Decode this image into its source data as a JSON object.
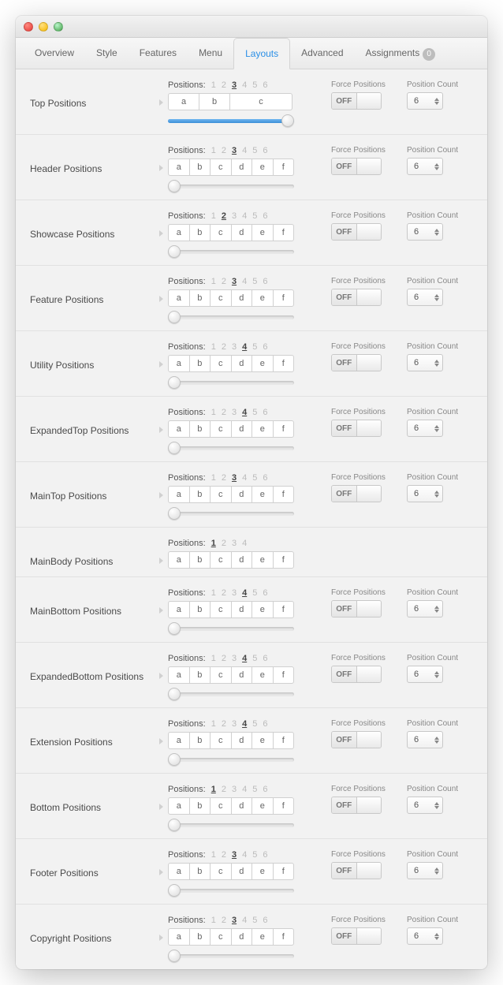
{
  "tabs": [
    {
      "label": "Overview",
      "active": false
    },
    {
      "label": "Style",
      "active": false
    },
    {
      "label": "Features",
      "active": false
    },
    {
      "label": "Menu",
      "active": false
    },
    {
      "label": "Layouts",
      "active": true
    },
    {
      "label": "Advanced",
      "active": false
    },
    {
      "label": "Assignments",
      "active": false,
      "badge": "0"
    }
  ],
  "labels": {
    "positions": "Positions:",
    "force": "Force Positions",
    "count": "Position Count"
  },
  "colors": {
    "accent": "#2b8fe6",
    "slider_fill": "#3c8fd8",
    "panel_bg": "#f2f2f2",
    "border": "#d4d4d4",
    "text": "#555",
    "muted": "#bbb"
  },
  "rows": [
    {
      "label": "Top Positions",
      "tags": 6,
      "activeTag": 3,
      "cells": [
        "a",
        "b",
        "c"
      ],
      "widths": [
        25,
        25,
        50
      ],
      "slider": 100,
      "force": "OFF",
      "count": 6
    },
    {
      "label": "Header Positions",
      "tags": 6,
      "activeTag": 3,
      "cells": [
        "a",
        "b",
        "c",
        "d",
        "e",
        "f"
      ],
      "slider": 0,
      "force": "OFF",
      "count": 6
    },
    {
      "label": "Showcase Positions",
      "tags": 6,
      "activeTag": 2,
      "cells": [
        "a",
        "b",
        "c",
        "d",
        "e",
        "f"
      ],
      "slider": 0,
      "force": "OFF",
      "count": 6
    },
    {
      "label": "Feature Positions",
      "tags": 6,
      "activeTag": 3,
      "cells": [
        "a",
        "b",
        "c",
        "d",
        "e",
        "f"
      ],
      "slider": 0,
      "force": "OFF",
      "count": 6
    },
    {
      "label": "Utility Positions",
      "tags": 6,
      "activeTag": 4,
      "cells": [
        "a",
        "b",
        "c",
        "d",
        "e",
        "f"
      ],
      "slider": 0,
      "force": "OFF",
      "count": 6
    },
    {
      "label": "ExpandedTop Positions",
      "tags": 6,
      "activeTag": 4,
      "cells": [
        "a",
        "b",
        "c",
        "d",
        "e",
        "f"
      ],
      "slider": 0,
      "force": "OFF",
      "count": 6
    },
    {
      "label": "MainTop Positions",
      "tags": 6,
      "activeTag": 3,
      "cells": [
        "a",
        "b",
        "c",
        "d",
        "e",
        "f"
      ],
      "slider": 0,
      "force": "OFF",
      "count": 6
    },
    {
      "label": "MainBody Positions",
      "tags": 4,
      "activeTag": 1,
      "cells": [
        "a",
        "b",
        "c",
        "d",
        "e",
        "f"
      ],
      "noSlider": true,
      "noRight": true
    },
    {
      "label": "MainBottom Positions",
      "tags": 6,
      "activeTag": 4,
      "cells": [
        "a",
        "b",
        "c",
        "d",
        "e",
        "f"
      ],
      "slider": 0,
      "force": "OFF",
      "count": 6
    },
    {
      "label": "ExpandedBottom Positions",
      "tags": 6,
      "activeTag": 4,
      "cells": [
        "a",
        "b",
        "c",
        "d",
        "e",
        "f"
      ],
      "slider": 0,
      "force": "OFF",
      "count": 6
    },
    {
      "label": "Extension Positions",
      "tags": 6,
      "activeTag": 4,
      "cells": [
        "a",
        "b",
        "c",
        "d",
        "e",
        "f"
      ],
      "slider": 0,
      "force": "OFF",
      "count": 6
    },
    {
      "label": "Bottom Positions",
      "tags": 6,
      "activeTag": 1,
      "cells": [
        "a",
        "b",
        "c",
        "d",
        "e",
        "f"
      ],
      "slider": 0,
      "force": "OFF",
      "count": 6
    },
    {
      "label": "Footer Positions",
      "tags": 6,
      "activeTag": 3,
      "cells": [
        "a",
        "b",
        "c",
        "d",
        "e",
        "f"
      ],
      "slider": 0,
      "force": "OFF",
      "count": 6
    },
    {
      "label": "Copyright Positions",
      "tags": 6,
      "activeTag": 3,
      "cells": [
        "a",
        "b",
        "c",
        "d",
        "e",
        "f"
      ],
      "slider": 0,
      "force": "OFF",
      "count": 6
    }
  ]
}
